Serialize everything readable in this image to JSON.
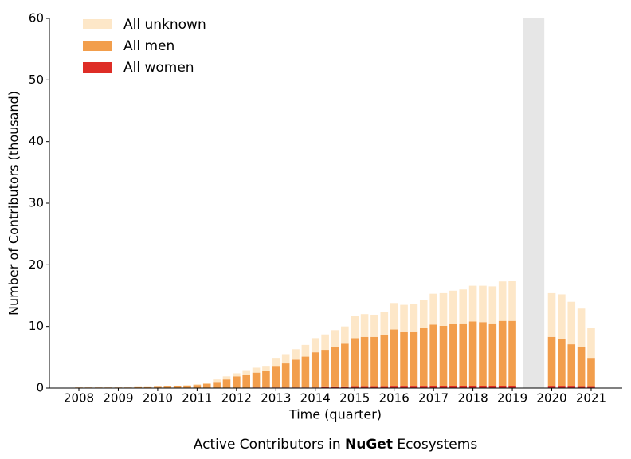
{
  "chart_data": {
    "type": "stacked_bar",
    "title": {
      "prefix": "Active Contributors in",
      "emphasis": "NuGet",
      "suffix": "Ecosystems"
    },
    "x_label": "Time (quarter)",
    "y_label": "Number of Contributors (thousand)",
    "categories": [
      "2008",
      null,
      null,
      null,
      "2009",
      null,
      null,
      null,
      "2010",
      null,
      null,
      null,
      "2011",
      null,
      null,
      null,
      "2012",
      null,
      null,
      null,
      "2013",
      null,
      null,
      null,
      "2014",
      null,
      null,
      null,
      "2015",
      null,
      null,
      null,
      "2016",
      null,
      null,
      null,
      "2017",
      null,
      null,
      null,
      "2018",
      null,
      null,
      null,
      "2019",
      null,
      null,
      null,
      "2020",
      null,
      null,
      null,
      "2021"
    ],
    "series": [
      {
        "name": "All women",
        "color": "#de2d26",
        "values": [
          0,
          0,
          0,
          0,
          0,
          0,
          0,
          0,
          0,
          0,
          0,
          0,
          0,
          0,
          0,
          0.05,
          0.05,
          0.05,
          0.1,
          0.1,
          0.1,
          0.1,
          0.1,
          0.1,
          0.1,
          0.15,
          0.15,
          0.15,
          0.2,
          0.2,
          0.2,
          0.2,
          0.25,
          0.25,
          0.25,
          0.25,
          0.3,
          0.3,
          0.35,
          0.35,
          0.35,
          0.35,
          0.35,
          0.35,
          0.35,
          null,
          null,
          null,
          0.25,
          0.25,
          0.25,
          0.2,
          0.2
        ]
      },
      {
        "name": "All men",
        "color": "#f29e4c",
        "values": [
          0.1,
          0.1,
          0.1,
          0.1,
          0.1,
          0.1,
          0.15,
          0.15,
          0.2,
          0.25,
          0.3,
          0.4,
          0.5,
          0.7,
          1.0,
          1.35,
          1.85,
          2.05,
          2.4,
          2.7,
          3.5,
          3.9,
          4.5,
          5.0,
          5.7,
          6.05,
          6.45,
          7.05,
          7.9,
          8.1,
          8.1,
          8.4,
          9.25,
          8.95,
          8.95,
          9.45,
          10.0,
          9.8,
          10.05,
          10.15,
          10.45,
          10.35,
          10.15,
          10.55,
          10.55,
          null,
          null,
          null,
          8.05,
          7.65,
          6.85,
          6.4,
          4.7
        ]
      },
      {
        "name": "All unknown",
        "color": "#fde7c8",
        "values": [
          0,
          0,
          0,
          0,
          0,
          0,
          0.05,
          0.05,
          0.05,
          0.05,
          0.1,
          0.1,
          0.15,
          0.2,
          0.4,
          0.5,
          0.5,
          0.8,
          0.8,
          0.8,
          1.3,
          1.5,
          1.7,
          1.9,
          2.3,
          2.5,
          2.8,
          2.8,
          3.6,
          3.7,
          3.6,
          3.7,
          4.3,
          4.3,
          4.4,
          4.6,
          5.0,
          5.3,
          5.4,
          5.5,
          5.8,
          5.9,
          6.0,
          6.4,
          6.5,
          null,
          null,
          null,
          7.1,
          7.3,
          6.9,
          6.3,
          4.8
        ]
      }
    ],
    "ylim": [
      0,
      60
    ],
    "yticks": [
      0,
      10,
      20,
      30,
      40,
      50,
      60
    ],
    "missing_shading": "#e6e6e6",
    "legend": "upper left"
  }
}
